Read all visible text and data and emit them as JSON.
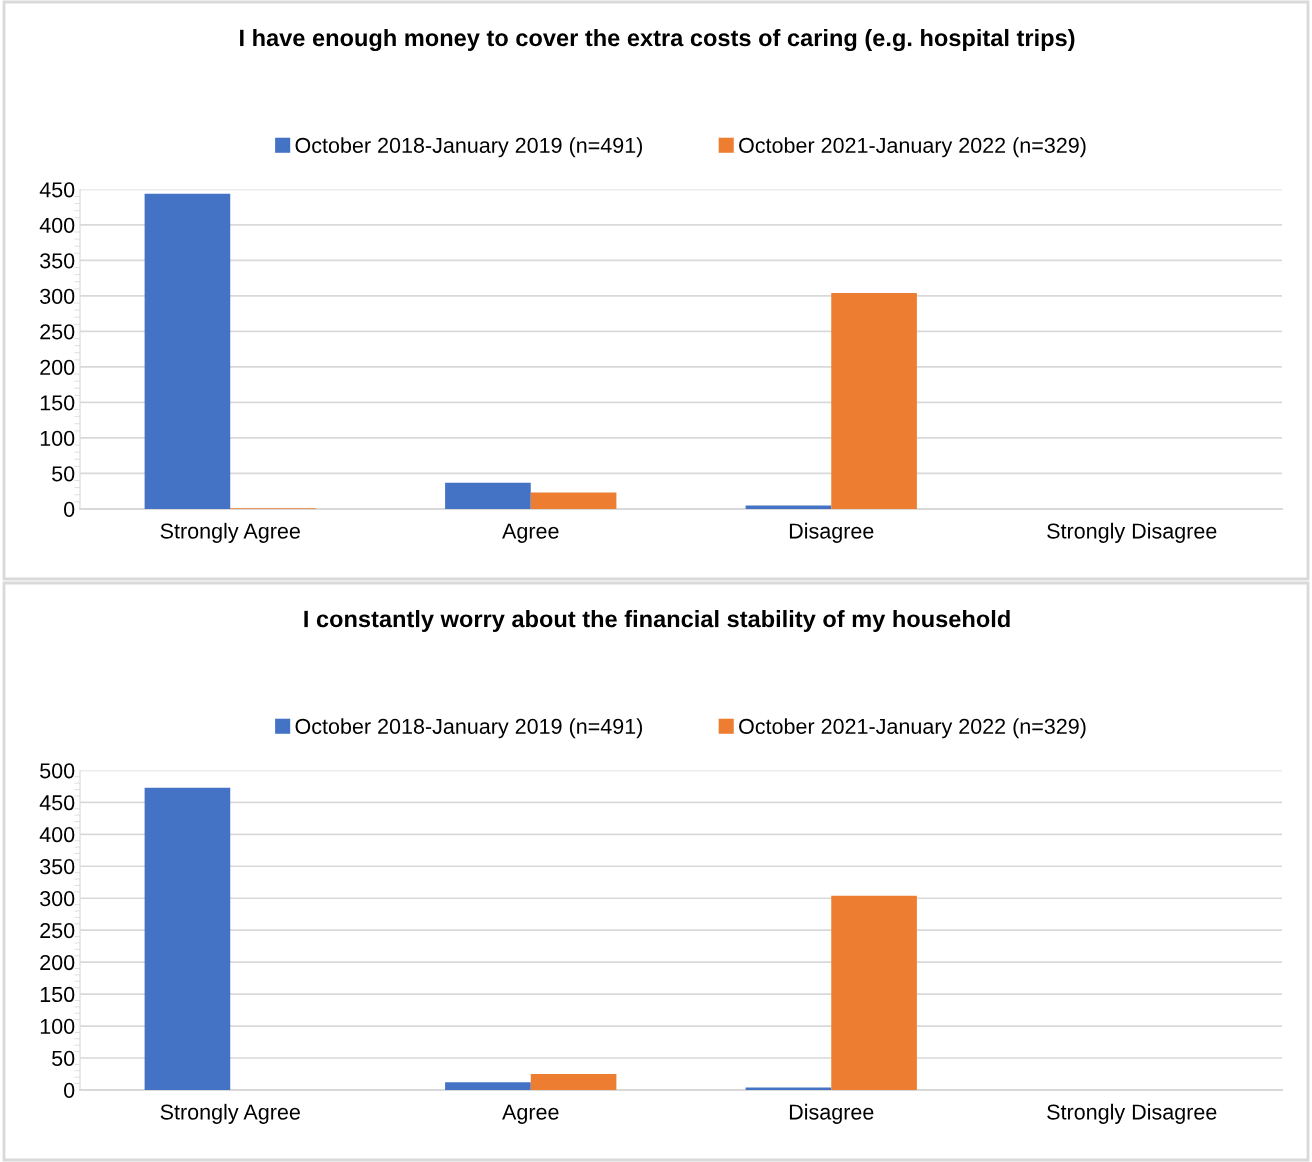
{
  "chart_data": [
    {
      "type": "bar",
      "title": "I have enough money to cover the extra costs of caring (e.g. hospital trips)",
      "categories": [
        "Strongly Agree",
        "Agree",
        "Disagree",
        "Strongly Disagree"
      ],
      "series": [
        {
          "name": "October 2018-January 2019 (n=491)",
          "color": "#4472c4",
          "values": [
            444,
            37,
            5,
            0
          ]
        },
        {
          "name": "October 2021-January 2022 (n=329)",
          "color": "#ed7d31",
          "values": [
            1,
            23,
            304,
            0
          ]
        }
      ],
      "ylim": [
        0,
        450
      ],
      "yticks": [
        0,
        50,
        100,
        150,
        200,
        250,
        300,
        350,
        400,
        450
      ],
      "grid": "y",
      "legend": "top"
    },
    {
      "type": "bar",
      "title": "I constantly worry about the financial stability of my household",
      "categories": [
        "Strongly Agree",
        "Agree",
        "Disagree",
        "Strongly Disagree"
      ],
      "series": [
        {
          "name": "October 2018-January 2019 (n=491)",
          "color": "#4472c4",
          "values": [
            473,
            12,
            4,
            0
          ]
        },
        {
          "name": "October 2021-January 2022 (n=329)",
          "color": "#ed7d31",
          "values": [
            0,
            25,
            304,
            0
          ]
        }
      ],
      "ylim": [
        0,
        500
      ],
      "yticks": [
        0,
        50,
        100,
        150,
        200,
        250,
        300,
        350,
        400,
        450,
        500
      ],
      "grid": "y",
      "legend": "top"
    }
  ]
}
